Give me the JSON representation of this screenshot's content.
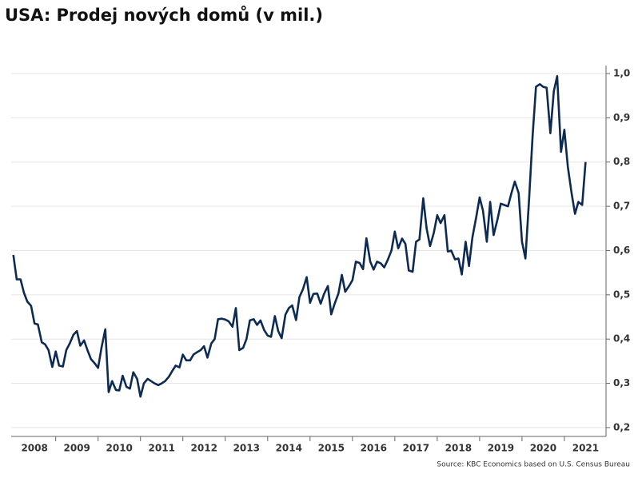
{
  "chart_data": {
    "type": "line",
    "title": "USA: Prodej nových domů (v mil.)",
    "source": "Source: KBC Economics based on U.S. Census Bureau",
    "x": [
      2008,
      2008.08,
      2008.17,
      2008.25,
      2008.33,
      2008.42,
      2008.5,
      2008.58,
      2008.67,
      2008.75,
      2008.83,
      2008.92,
      2009,
      2009.08,
      2009.17,
      2009.25,
      2009.33,
      2009.42,
      2009.5,
      2009.58,
      2009.67,
      2009.75,
      2009.83,
      2009.92,
      2010,
      2010.08,
      2010.17,
      2010.25,
      2010.33,
      2010.42,
      2010.5,
      2010.58,
      2010.67,
      2010.75,
      2010.83,
      2010.92,
      2011,
      2011.08,
      2011.17,
      2011.25,
      2011.33,
      2011.42,
      2011.5,
      2011.58,
      2011.67,
      2011.75,
      2011.83,
      2011.92,
      2012,
      2012.08,
      2012.17,
      2012.25,
      2012.33,
      2012.42,
      2012.5,
      2012.58,
      2012.67,
      2012.75,
      2012.83,
      2012.92,
      2013,
      2013.08,
      2013.17,
      2013.25,
      2013.33,
      2013.42,
      2013.5,
      2013.58,
      2013.67,
      2013.75,
      2013.83,
      2013.92,
      2014,
      2014.08,
      2014.17,
      2014.25,
      2014.33,
      2014.42,
      2014.5,
      2014.58,
      2014.67,
      2014.75,
      2014.83,
      2014.92,
      2015,
      2015.08,
      2015.17,
      2015.25,
      2015.33,
      2015.42,
      2015.5,
      2015.58,
      2015.67,
      2015.75,
      2015.83,
      2015.92,
      2016,
      2016.08,
      2016.17,
      2016.25,
      2016.33,
      2016.42,
      2016.5,
      2016.58,
      2016.67,
      2016.75,
      2016.83,
      2016.92,
      2017,
      2017.08,
      2017.17,
      2017.25,
      2017.33,
      2017.42,
      2017.5,
      2017.58,
      2017.67,
      2017.75,
      2017.83,
      2017.92,
      2018,
      2018.08,
      2018.17,
      2018.25,
      2018.33,
      2018.42,
      2018.5,
      2018.58,
      2018.67,
      2018.75,
      2018.83,
      2018.92,
      2019,
      2019.08,
      2019.17,
      2019.25,
      2019.33,
      2019.42,
      2019.5,
      2019.58,
      2019.67,
      2019.75,
      2019.83,
      2019.92,
      2020,
      2020.08,
      2020.17,
      2020.25,
      2020.33,
      2020.42,
      2020.5,
      2020.58,
      2020.67,
      2020.75,
      2020.83,
      2020.92,
      2021,
      2021.08,
      2021.17,
      2021.25,
      2021.33,
      2021.42,
      2021.5
    ],
    "series": [
      {
        "name": "Prodej nových domů",
        "color": "#0d2a52",
        "values": [
          0.59,
          0.535,
          0.535,
          0.505,
          0.485,
          0.475,
          0.435,
          0.433,
          0.393,
          0.388,
          0.375,
          0.337,
          0.372,
          0.34,
          0.338,
          0.375,
          0.39,
          0.41,
          0.418,
          0.385,
          0.397,
          0.375,
          0.355,
          0.345,
          0.335,
          0.38,
          0.422,
          0.28,
          0.305,
          0.285,
          0.284,
          0.317,
          0.292,
          0.288,
          0.325,
          0.31,
          0.27,
          0.3,
          0.31,
          0.305,
          0.3,
          0.296,
          0.3,
          0.305,
          0.315,
          0.328,
          0.34,
          0.336,
          0.365,
          0.352,
          0.352,
          0.365,
          0.37,
          0.375,
          0.384,
          0.358,
          0.39,
          0.4,
          0.445,
          0.446,
          0.444,
          0.44,
          0.428,
          0.47,
          0.375,
          0.38,
          0.4,
          0.442,
          0.445,
          0.432,
          0.442,
          0.42,
          0.408,
          0.405,
          0.452,
          0.418,
          0.402,
          0.455,
          0.47,
          0.476,
          0.443,
          0.495,
          0.512,
          0.54,
          0.482,
          0.502,
          0.503,
          0.48,
          0.502,
          0.52,
          0.456,
          0.48,
          0.503,
          0.545,
          0.507,
          0.52,
          0.533,
          0.575,
          0.572,
          0.558,
          0.628,
          0.575,
          0.557,
          0.575,
          0.571,
          0.562,
          0.578,
          0.6,
          0.643,
          0.605,
          0.627,
          0.615,
          0.555,
          0.552,
          0.62,
          0.625,
          0.718,
          0.65,
          0.61,
          0.64,
          0.68,
          0.662,
          0.68,
          0.598,
          0.6,
          0.58,
          0.582,
          0.546,
          0.62,
          0.565,
          0.63,
          0.675,
          0.72,
          0.69,
          0.62,
          0.71,
          0.635,
          0.67,
          0.706,
          0.703,
          0.7,
          0.73,
          0.756,
          0.73,
          0.62,
          0.582,
          0.72,
          0.86,
          0.97,
          0.976,
          0.97,
          0.968,
          0.865,
          0.96,
          0.994,
          0.823,
          0.873,
          0.79,
          0.73,
          0.683,
          0.71,
          0.703,
          0.8
        ]
      }
    ],
    "xlim": [
      2007.95,
      2021.85
    ],
    "xticks": [
      2008,
      2009,
      2010,
      2011,
      2012,
      2013,
      2014,
      2015,
      2016,
      2017,
      2018,
      2019,
      2020,
      2021
    ],
    "ylim": [
      0.18,
      1.0
    ],
    "yticks": [
      {
        "value": 0.2,
        "label": "0,2"
      },
      {
        "value": 0.3,
        "label": "0,3"
      },
      {
        "value": 0.4,
        "label": "0,4"
      },
      {
        "value": 0.5,
        "label": "0,5"
      },
      {
        "value": 0.6,
        "label": "0,6"
      },
      {
        "value": 0.7,
        "label": "0,7"
      },
      {
        "value": 0.8,
        "label": "0,8"
      },
      {
        "value": 0.9,
        "label": "0,9"
      },
      {
        "value": 1.0,
        "label": "1,0"
      }
    ],
    "grid": true
  }
}
